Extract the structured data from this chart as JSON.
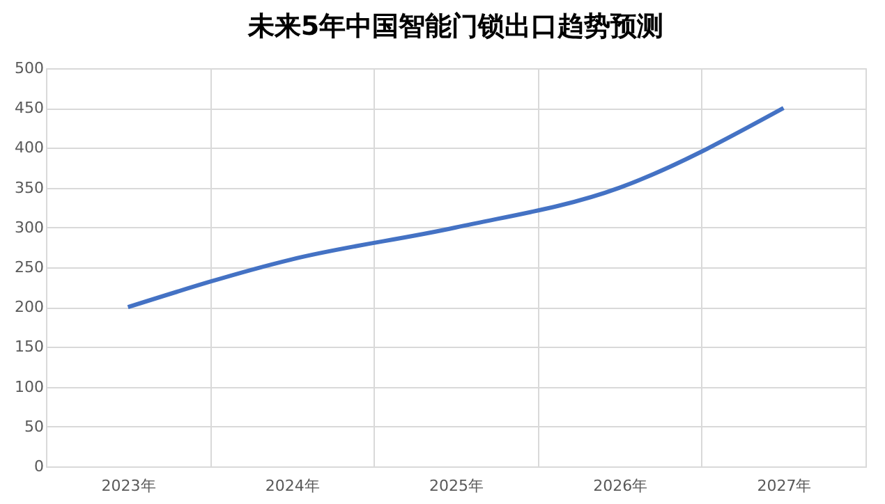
{
  "chart_data": {
    "type": "line",
    "title": "未来5年中国智能门锁出口趋势预测",
    "categories": [
      "2023年",
      "2024年",
      "2025年",
      "2026年",
      "2027年"
    ],
    "series": [
      {
        "color": "#4472c4",
        "values": [
          200,
          260,
          300,
          350,
          450
        ]
      }
    ],
    "ylim": [
      0,
      500
    ],
    "yticks": [
      0,
      50,
      100,
      150,
      200,
      250,
      300,
      350,
      400,
      450,
      500
    ],
    "grid": true,
    "marker": "none",
    "line_style": "solid"
  }
}
